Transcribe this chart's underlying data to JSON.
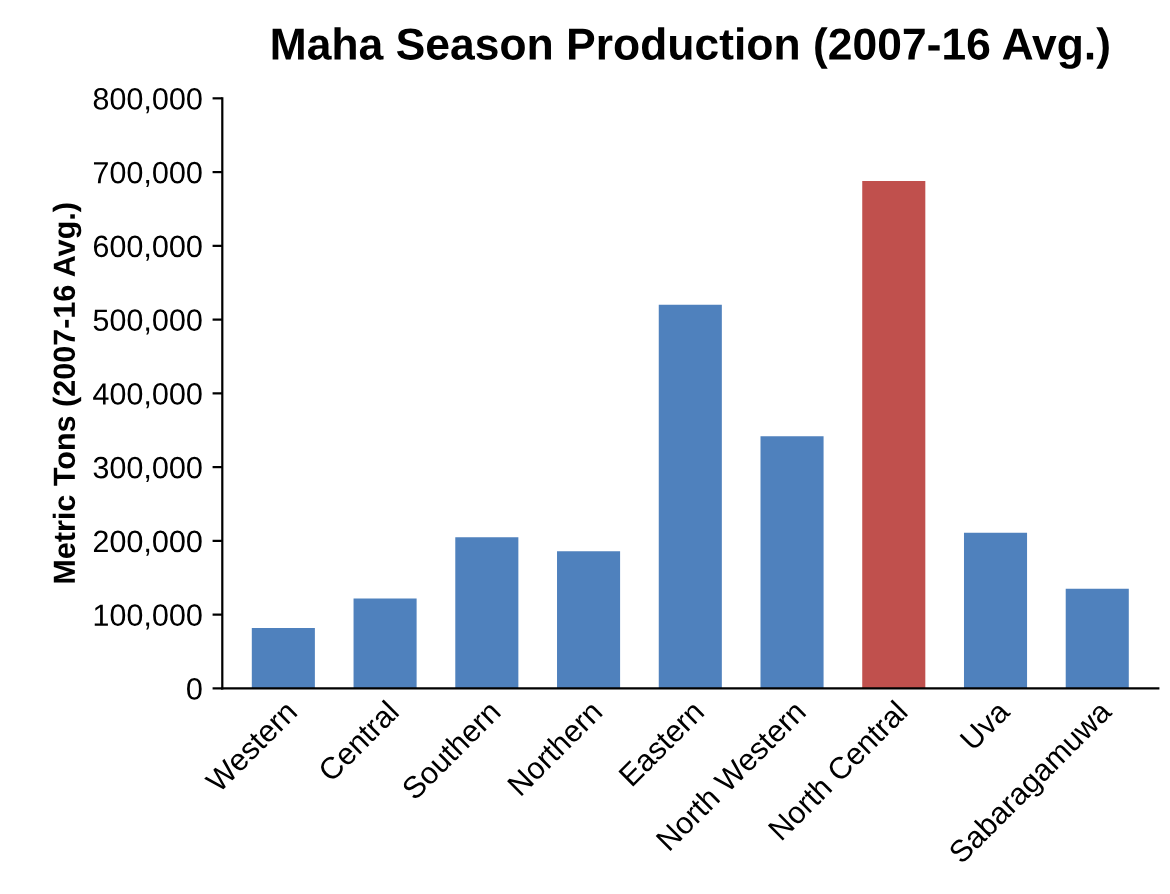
{
  "chart_data": {
    "type": "bar",
    "title": "Maha Season Production (2007-16 Avg.)",
    "ylabel": "Metric Tons (2007-16 Avg.)",
    "categories": [
      "Western",
      "Central",
      "Southern",
      "Northern",
      "Eastern",
      "North Western",
      "North Central",
      "Uva",
      "Sabaragamuwa"
    ],
    "values": [
      82000,
      122000,
      205000,
      186000,
      520000,
      342000,
      688000,
      211000,
      135000
    ],
    "colors": [
      "#4f81bd",
      "#4f81bd",
      "#4f81bd",
      "#4f81bd",
      "#4f81bd",
      "#4f81bd",
      "#c0504d",
      "#4f81bd",
      "#4f81bd"
    ],
    "ylim": [
      0,
      800000
    ],
    "yticks": [
      {
        "value": 0,
        "label": "0"
      },
      {
        "value": 100000,
        "label": "100,000"
      },
      {
        "value": 200000,
        "label": "200,000"
      },
      {
        "value": 300000,
        "label": "300,000"
      },
      {
        "value": 400000,
        "label": "400,000"
      },
      {
        "value": 500000,
        "label": "500,000"
      },
      {
        "value": 600000,
        "label": "600,000"
      },
      {
        "value": 700000,
        "label": "700,000"
      },
      {
        "value": 800000,
        "label": "800,000"
      }
    ],
    "grid": false
  }
}
